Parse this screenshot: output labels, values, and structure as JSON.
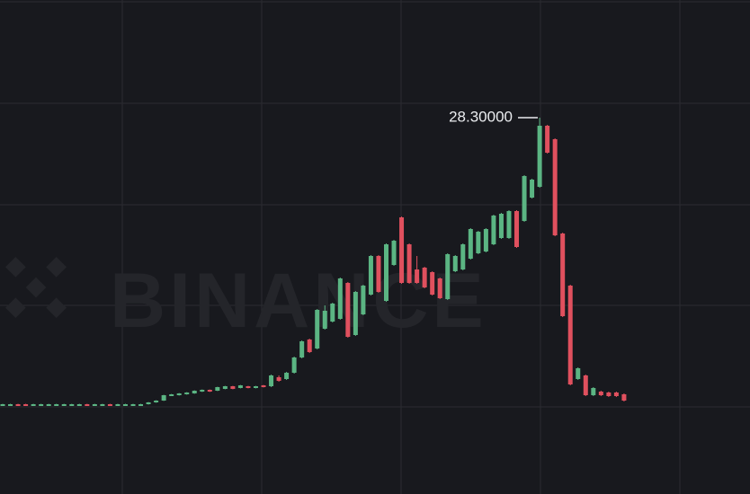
{
  "chart_data": {
    "type": "candlestick",
    "watermark": "BINANCE",
    "up_color": "#5bb583",
    "down_color": "#e0505e",
    "ylim": [
      7.35,
      34.85
    ],
    "high_marker": {
      "value": 28.3,
      "label": "28.30000"
    },
    "open": [
      12.3,
      12.3,
      12.35,
      12.35,
      12.3,
      12.3,
      12.3,
      12.3,
      12.3,
      12.3,
      12.3,
      12.35,
      12.3,
      12.3,
      12.35,
      12.3,
      12.3,
      12.3,
      12.3,
      12.35,
      12.45,
      12.55,
      12.85,
      12.85,
      12.9,
      12.95,
      13.05,
      13.15,
      13.1,
      13.2,
      13.35,
      13.25,
      13.35,
      13.25,
      13.4,
      13.35,
      13.85,
      13.75,
      14.1,
      14.95,
      15.95,
      15.45,
      16.55,
      16.95,
      17.1,
      19.1,
      16.2,
      17.35,
      18.45,
      20.6,
      18.1,
      20.1,
      22.75,
      21.25,
      19.85,
      19.95,
      19.7,
      19.35,
      18.2,
      19.75,
      19.85,
      20.45,
      20.75,
      20.85,
      21.25,
      21.6,
      21.6,
      23.1,
      22.55,
      23.85,
      24.45,
      27.85,
      27.1,
      21.85,
      18.95,
      13.75,
      13.95,
      12.85,
      13.05,
      13.0,
      13.0,
      12.9
    ],
    "high": [
      12.37,
      12.37,
      12.37,
      12.37,
      12.37,
      12.37,
      12.37,
      12.37,
      12.37,
      12.37,
      12.37,
      12.37,
      12.37,
      12.37,
      12.37,
      12.37,
      12.37,
      12.37,
      12.37,
      12.47,
      12.57,
      12.87,
      12.92,
      12.97,
      13.02,
      13.12,
      13.17,
      13.17,
      13.32,
      13.37,
      13.37,
      13.42,
      13.37,
      13.37,
      13.42,
      14.0,
      13.95,
      14.15,
      15.0,
      15.9,
      16.0,
      17.65,
      17.85,
      18.0,
      19.4,
      19.15,
      18.65,
      19.0,
      20.65,
      20.65,
      21.3,
      21.5,
      22.8,
      21.3,
      20.6,
      20.0,
      19.75,
      19.4,
      20.75,
      20.65,
      21.3,
      22.15,
      22.0,
      22.15,
      22.9,
      23.0,
      23.15,
      23.15,
      25.1,
      24.9,
      28.3,
      27.9,
      27.15,
      21.9,
      19.0,
      14.4,
      14.0,
      13.3,
      13.1,
      13.05,
      13.05,
      12.95
    ],
    "low": [
      12.28,
      12.28,
      12.28,
      12.28,
      12.28,
      12.28,
      12.28,
      12.28,
      12.28,
      12.28,
      12.28,
      12.28,
      12.28,
      12.28,
      12.28,
      12.28,
      12.28,
      12.28,
      12.28,
      12.33,
      12.43,
      12.53,
      12.83,
      12.83,
      12.88,
      12.93,
      13.03,
      13.03,
      13.08,
      13.18,
      13.18,
      13.23,
      13.23,
      13.23,
      13.28,
      13.3,
      13.6,
      13.7,
      14.05,
      14.9,
      15.2,
      15.4,
      16.5,
      16.9,
      17.05,
      16.05,
      16.15,
      17.3,
      18.4,
      18.55,
      18.05,
      20.05,
      19.05,
      19.05,
      19.05,
      18.8,
      18.4,
      18.2,
      18.15,
      19.7,
      19.8,
      20.4,
      20.7,
      20.8,
      21.2,
      21.55,
      21.55,
      21.05,
      22.5,
      23.8,
      24.4,
      26.3,
      21.7,
      17.2,
      13.4,
      13.7,
      12.8,
      12.8,
      12.8,
      12.75,
      12.75,
      12.5
    ],
    "close": [
      12.35,
      12.35,
      12.3,
      12.3,
      12.35,
      12.35,
      12.35,
      12.35,
      12.35,
      12.35,
      12.35,
      12.3,
      12.35,
      12.35,
      12.3,
      12.35,
      12.35,
      12.35,
      12.35,
      12.45,
      12.55,
      12.85,
      12.9,
      12.95,
      13.0,
      13.1,
      13.15,
      13.05,
      13.3,
      13.35,
      13.2,
      13.4,
      13.25,
      13.35,
      13.3,
      13.95,
      13.65,
      14.1,
      14.95,
      15.85,
      15.25,
      17.6,
      17.55,
      17.95,
      19.35,
      16.1,
      18.6,
      18.95,
      20.6,
      18.6,
      21.25,
      21.45,
      19.1,
      19.1,
      19.1,
      18.85,
      18.45,
      18.25,
      20.7,
      20.6,
      21.25,
      22.1,
      21.95,
      22.1,
      22.85,
      22.95,
      23.1,
      21.1,
      25.05,
      24.85,
      27.85,
      26.35,
      21.75,
      17.25,
      13.45,
      14.35,
      12.85,
      13.25,
      12.85,
      12.8,
      12.8,
      12.55
    ]
  }
}
